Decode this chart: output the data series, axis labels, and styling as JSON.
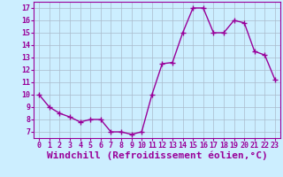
{
  "x": [
    0,
    1,
    2,
    3,
    4,
    5,
    6,
    7,
    8,
    9,
    10,
    11,
    12,
    13,
    14,
    15,
    16,
    17,
    18,
    19,
    20,
    21,
    22,
    23
  ],
  "y": [
    10,
    9,
    8.5,
    8.2,
    7.8,
    8.0,
    8.0,
    7.0,
    7.0,
    6.8,
    7.0,
    10.0,
    12.5,
    12.6,
    15.0,
    17.0,
    17.0,
    15.0,
    15.0,
    16.0,
    15.8,
    13.5,
    13.2,
    11.2
  ],
  "line_color": "#990099",
  "marker": "+",
  "marker_size": 4,
  "bg_color": "#cceeff",
  "grid_color": "#aabbcc",
  "xlabel": "Windchill (Refroidissement éolien,°C)",
  "xlabel_fontsize": 8,
  "ylim": [
    6.5,
    17.5
  ],
  "yticks": [
    7,
    8,
    9,
    10,
    11,
    12,
    13,
    14,
    15,
    16,
    17
  ],
  "xticks": [
    0,
    1,
    2,
    3,
    4,
    5,
    6,
    7,
    8,
    9,
    10,
    11,
    12,
    13,
    14,
    15,
    16,
    17,
    18,
    19,
    20,
    21,
    22,
    23
  ],
  "tick_fontsize": 6,
  "line_width": 1.0
}
